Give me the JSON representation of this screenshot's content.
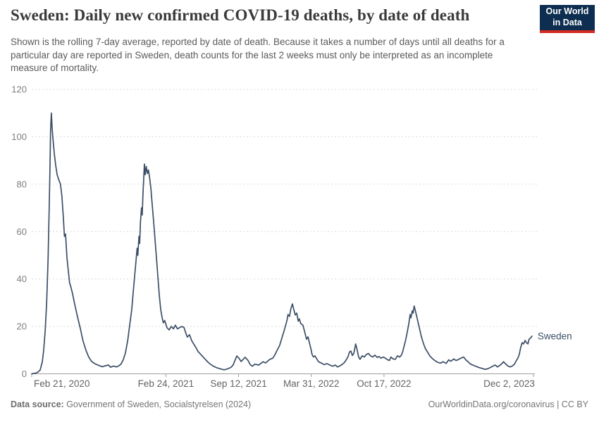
{
  "header": {
    "title": "Sweden: Daily new confirmed COVID-19 deaths, by date of death",
    "subtitle": "Shown is the rolling 7-day average, reported by date of death. Because it takes a number of days until all deaths for a particular day are reported in Sweden, death counts for the last 2 weeks must only be interpreted as an incomplete measure of mortality.",
    "logo_line1": "Our World",
    "logo_line2": "in Data"
  },
  "chart_data": {
    "type": "line",
    "title": "Sweden: Daily new confirmed COVID-19 deaths, by date of death",
    "ylabel": "",
    "xlabel": "",
    "grid": "horizontal-dashed",
    "y_axis": {
      "range": [
        0,
        120
      ],
      "ticks": [
        0,
        20,
        40,
        60,
        80,
        100,
        120
      ]
    },
    "x_axis": {
      "unit": "days since 2020-02-21",
      "range_days": [
        0,
        1384
      ],
      "ticks": [
        {
          "day": 0,
          "label": "Feb 21, 2020"
        },
        {
          "day": 369,
          "label": "Feb 24, 2021"
        },
        {
          "day": 569,
          "label": "Sep 12, 2021"
        },
        {
          "day": 769,
          "label": "Mar 31, 2022"
        },
        {
          "day": 969,
          "label": "Oct 17, 2022"
        },
        {
          "day": 1380,
          "label": "Dec 2, 2023"
        }
      ]
    },
    "series": [
      {
        "name": "Sweden",
        "end_label": "Sweden",
        "points": [
          [
            0,
            0
          ],
          [
            14,
            0.4
          ],
          [
            23,
            1.5
          ],
          [
            29,
            5
          ],
          [
            33,
            10
          ],
          [
            37,
            18
          ],
          [
            41,
            30
          ],
          [
            45,
            48
          ],
          [
            48,
            70
          ],
          [
            50,
            85
          ],
          [
            52,
            103
          ],
          [
            54,
            110
          ],
          [
            56,
            104
          ],
          [
            58,
            100
          ],
          [
            62,
            93
          ],
          [
            66,
            88
          ],
          [
            70,
            84
          ],
          [
            74,
            82
          ],
          [
            79,
            80
          ],
          [
            83,
            75
          ],
          [
            87,
            66
          ],
          [
            90,
            58
          ],
          [
            93,
            59
          ],
          [
            97,
            49
          ],
          [
            101,
            43
          ],
          [
            104,
            38.5
          ],
          [
            108,
            36.5
          ],
          [
            112,
            34
          ],
          [
            118,
            29.5
          ],
          [
            126,
            24
          ],
          [
            134,
            19
          ],
          [
            141,
            14
          ],
          [
            149,
            10
          ],
          [
            157,
            7
          ],
          [
            165,
            5.2
          ],
          [
            174,
            4.2
          ],
          [
            184,
            3.6
          ],
          [
            194,
            3
          ],
          [
            203,
            3.4
          ],
          [
            211,
            3.7
          ],
          [
            217,
            2.8
          ],
          [
            225,
            3.3
          ],
          [
            233,
            2.9
          ],
          [
            240,
            3.4
          ],
          [
            246,
            4.2
          ],
          [
            252,
            6
          ],
          [
            258,
            9
          ],
          [
            264,
            14
          ],
          [
            269,
            20
          ],
          [
            275,
            27
          ],
          [
            279,
            34
          ],
          [
            283,
            41
          ],
          [
            287,
            48
          ],
          [
            290,
            53
          ],
          [
            292,
            50
          ],
          [
            295,
            58
          ],
          [
            297,
            55
          ],
          [
            299,
            64
          ],
          [
            302,
            70
          ],
          [
            304,
            67
          ],
          [
            306,
            76
          ],
          [
            308,
            82
          ],
          [
            310,
            88.5
          ],
          [
            312,
            84
          ],
          [
            315,
            87.5
          ],
          [
            318,
            84.5
          ],
          [
            321,
            86
          ],
          [
            324,
            83
          ],
          [
            328,
            78
          ],
          [
            331,
            72
          ],
          [
            335,
            65
          ],
          [
            339,
            57
          ],
          [
            343,
            49
          ],
          [
            347,
            41
          ],
          [
            351,
            33
          ],
          [
            355,
            27
          ],
          [
            359,
            23.5
          ],
          [
            362,
            21.5
          ],
          [
            366,
            22.5
          ],
          [
            372,
            19.5
          ],
          [
            378,
            18.5
          ],
          [
            384,
            20
          ],
          [
            390,
            19
          ],
          [
            395,
            20.5
          ],
          [
            401,
            19
          ],
          [
            407,
            19.5
          ],
          [
            413,
            20
          ],
          [
            419,
            19.5
          ],
          [
            422,
            18
          ],
          [
            428,
            15.5
          ],
          [
            434,
            16.5
          ],
          [
            440,
            14
          ],
          [
            446,
            12.5
          ],
          [
            452,
            11
          ],
          [
            457,
            9.5
          ],
          [
            463,
            8.5
          ],
          [
            469,
            7.5
          ],
          [
            475,
            6.5
          ],
          [
            483,
            5.2
          ],
          [
            490,
            4.2
          ],
          [
            500,
            3.2
          ],
          [
            510,
            2.5
          ],
          [
            519,
            2.1
          ],
          [
            529,
            1.7
          ],
          [
            539,
            2.1
          ],
          [
            548,
            2.7
          ],
          [
            554,
            3.7
          ],
          [
            560,
            6
          ],
          [
            564,
            7.5
          ],
          [
            570,
            6.6
          ],
          [
            576,
            5.2
          ],
          [
            581,
            6
          ],
          [
            587,
            7
          ],
          [
            595,
            5.6
          ],
          [
            601,
            3.9
          ],
          [
            607,
            3.2
          ],
          [
            614,
            4.1
          ],
          [
            624,
            3.7
          ],
          [
            630,
            4.3
          ],
          [
            636,
            5.1
          ],
          [
            643,
            4.6
          ],
          [
            649,
            5.3
          ],
          [
            655,
            6.1
          ],
          [
            663,
            6.6
          ],
          [
            669,
            8
          ],
          [
            674,
            9.6
          ],
          [
            682,
            12
          ],
          [
            688,
            15
          ],
          [
            694,
            18
          ],
          [
            702,
            22.5
          ],
          [
            705,
            25
          ],
          [
            709,
            24.2
          ],
          [
            713,
            27.5
          ],
          [
            717,
            29.5
          ],
          [
            721,
            27
          ],
          [
            725,
            24.8
          ],
          [
            729,
            25.6
          ],
          [
            733,
            22.2
          ],
          [
            736,
            23.2
          ],
          [
            740,
            21.2
          ],
          [
            746,
            20.5
          ],
          [
            750,
            18.2
          ],
          [
            756,
            14.6
          ],
          [
            760,
            15.6
          ],
          [
            764,
            13
          ],
          [
            768,
            10.6
          ],
          [
            771,
            8.2
          ],
          [
            775,
            7.1
          ],
          [
            779,
            7.6
          ],
          [
            783,
            6.6
          ],
          [
            789,
            5.1
          ],
          [
            797,
            4.5
          ],
          [
            804,
            3.9
          ],
          [
            812,
            4.3
          ],
          [
            820,
            3.7
          ],
          [
            828,
            3.2
          ],
          [
            835,
            3.7
          ],
          [
            841,
            2.9
          ],
          [
            847,
            3.3
          ],
          [
            853,
            3.9
          ],
          [
            859,
            4.6
          ],
          [
            864,
            5.6
          ],
          [
            870,
            7.2
          ],
          [
            874,
            9.2
          ],
          [
            878,
            9.6
          ],
          [
            882,
            7.7
          ],
          [
            886,
            8.7
          ],
          [
            891,
            12.6
          ],
          [
            895,
            10.2
          ],
          [
            899,
            7.2
          ],
          [
            903,
            6.1
          ],
          [
            909,
            7.6
          ],
          [
            915,
            7.1
          ],
          [
            920,
            8.1
          ],
          [
            926,
            8.6
          ],
          [
            932,
            7.6
          ],
          [
            938,
            7.1
          ],
          [
            944,
            7.9
          ],
          [
            950,
            6.9
          ],
          [
            955,
            7.3
          ],
          [
            961,
            6.6
          ],
          [
            967,
            7.1
          ],
          [
            973,
            6.6
          ],
          [
            979,
            5.9
          ],
          [
            984,
            5.6
          ],
          [
            988,
            7.1
          ],
          [
            994,
            6.3
          ],
          [
            1000,
            6.1
          ],
          [
            1006,
            7.6
          ],
          [
            1012,
            7.1
          ],
          [
            1017,
            7.9
          ],
          [
            1021,
            9.6
          ],
          [
            1025,
            12.1
          ],
          [
            1029,
            14.6
          ],
          [
            1033,
            17.6
          ],
          [
            1037,
            21
          ],
          [
            1041,
            25
          ],
          [
            1043,
            23.6
          ],
          [
            1047,
            26.6
          ],
          [
            1049,
            25.6
          ],
          [
            1052,
            28.6
          ],
          [
            1056,
            26.1
          ],
          [
            1060,
            23.6
          ],
          [
            1066,
            19.6
          ],
          [
            1072,
            15.6
          ],
          [
            1078,
            12.6
          ],
          [
            1083,
            10.6
          ],
          [
            1089,
            9.1
          ],
          [
            1095,
            7.6
          ],
          [
            1101,
            6.6
          ],
          [
            1109,
            5.6
          ],
          [
            1116,
            4.9
          ],
          [
            1124,
            4.5
          ],
          [
            1132,
            5.1
          ],
          [
            1140,
            4.4
          ],
          [
            1147,
            5.9
          ],
          [
            1153,
            5.3
          ],
          [
            1161,
            6.3
          ],
          [
            1167,
            5.6
          ],
          [
            1172,
            5.9
          ],
          [
            1180,
            6.6
          ],
          [
            1188,
            7.1
          ],
          [
            1194,
            5.9
          ],
          [
            1200,
            5.1
          ],
          [
            1207,
            4.1
          ],
          [
            1215,
            3.6
          ],
          [
            1223,
            3.1
          ],
          [
            1231,
            2.6
          ],
          [
            1238,
            2.3
          ],
          [
            1246,
            1.9
          ],
          [
            1254,
            2.1
          ],
          [
            1262,
            2.7
          ],
          [
            1269,
            3.3
          ],
          [
            1275,
            3.7
          ],
          [
            1281,
            2.9
          ],
          [
            1287,
            3.5
          ],
          [
            1293,
            4.3
          ],
          [
            1298,
            5.1
          ],
          [
            1304,
            4.1
          ],
          [
            1310,
            3.3
          ],
          [
            1316,
            2.9
          ],
          [
            1322,
            3.3
          ],
          [
            1328,
            4.1
          ],
          [
            1333,
            5.6
          ],
          [
            1337,
            6.6
          ],
          [
            1341,
            8.1
          ],
          [
            1345,
            11.1
          ],
          [
            1349,
            13.1
          ],
          [
            1353,
            12.6
          ],
          [
            1357,
            14.1
          ],
          [
            1361,
            13.1
          ],
          [
            1365,
            12.6
          ],
          [
            1368,
            14.6
          ],
          [
            1372,
            15.1
          ],
          [
            1376,
            15.9
          ]
        ]
      }
    ]
  },
  "footer": {
    "source_label": "Data source:",
    "source_text": " Government of Sweden, Socialstyrelsen (2024)",
    "link_text": "OurWorldinData.org/coronavirus",
    "license_text": " | CC BY"
  },
  "colors": {
    "line": "#3c4e66",
    "end_label": "#3c4e66",
    "grid": "#dcdcdc",
    "axis": "#9e9e9e",
    "y_tick_text": "#7e7e7e",
    "x_tick_text": "#636363",
    "logo_bg": "#0d2e50",
    "logo_stripe": "#d42b22"
  }
}
